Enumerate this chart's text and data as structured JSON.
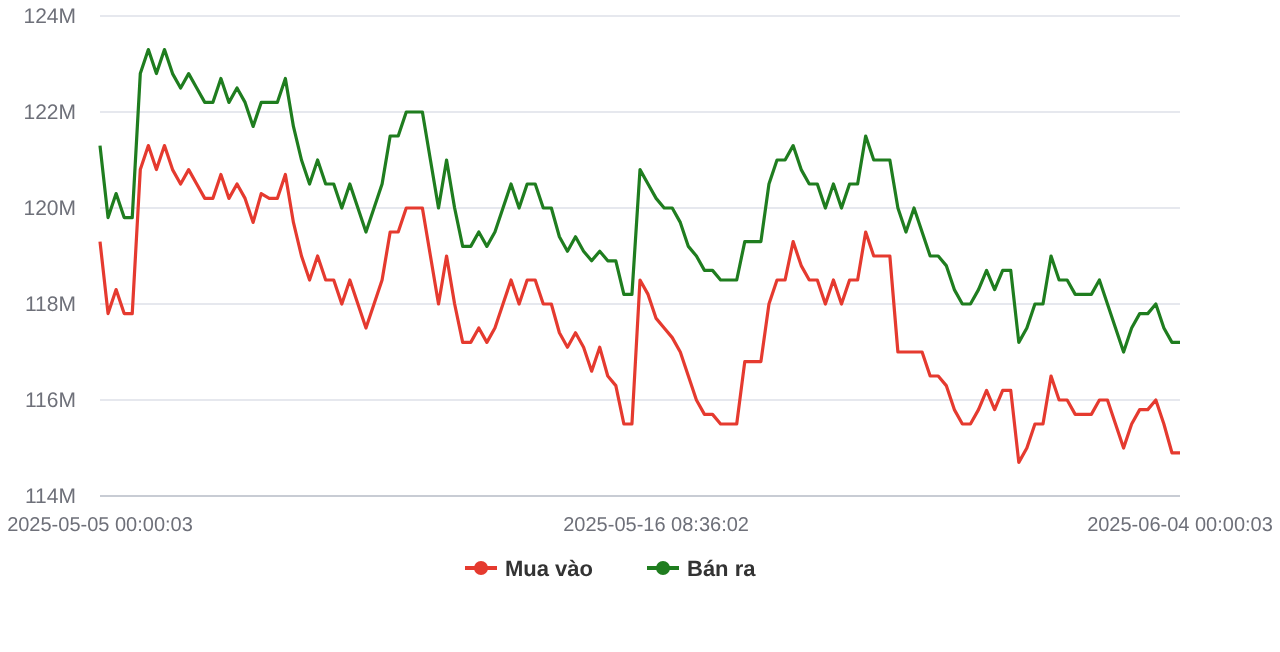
{
  "chart_data": {
    "type": "line",
    "categories": [
      "2025-05-05 00:00:03",
      null,
      null,
      null,
      null,
      null,
      null,
      null,
      null,
      null,
      null,
      null,
      null,
      null,
      null,
      null,
      null,
      null,
      null,
      null,
      null,
      null,
      null,
      null,
      null,
      null,
      null,
      null,
      null,
      null,
      null,
      null,
      null,
      null,
      null,
      null,
      null,
      null,
      null,
      null,
      null,
      null,
      null,
      null,
      null,
      null,
      null,
      null,
      null,
      null,
      null,
      null,
      null,
      null,
      null,
      null,
      null,
      null,
      null,
      null,
      null,
      null,
      null,
      null,
      null,
      null,
      null,
      null,
      null,
      "2025-05-16 08:36:02",
      null,
      null,
      null,
      null,
      null,
      null,
      null,
      null,
      null,
      null,
      null,
      null,
      null,
      null,
      null,
      null,
      null,
      null,
      null,
      null,
      null,
      null,
      null,
      null,
      null,
      null,
      null,
      null,
      null,
      null,
      null,
      null,
      null,
      null,
      null,
      null,
      null,
      null,
      null,
      null,
      null,
      null,
      null,
      null,
      null,
      null,
      null,
      null,
      null,
      null,
      null,
      null,
      null,
      null,
      null,
      null,
      null,
      null,
      null,
      null,
      null,
      null,
      null,
      null,
      "2025-06-04 00:00:03"
    ],
    "series": [
      {
        "name": "Mua vào",
        "color": "#e53a2f",
        "values": [
          119.3,
          117.8,
          118.3,
          117.8,
          117.8,
          120.8,
          121.3,
          120.8,
          121.3,
          120.8,
          120.5,
          120.8,
          120.5,
          120.2,
          120.2,
          120.7,
          120.2,
          120.5,
          120.2,
          119.7,
          120.3,
          120.2,
          120.2,
          120.7,
          119.7,
          119.0,
          118.5,
          119.0,
          118.5,
          118.5,
          118.0,
          118.5,
          118.0,
          117.5,
          118.0,
          118.5,
          119.5,
          119.5,
          120.0,
          120.0,
          120.0,
          119.0,
          118.0,
          119.0,
          118.0,
          117.2,
          117.2,
          117.5,
          117.2,
          117.5,
          118.0,
          118.5,
          118.0,
          118.5,
          118.5,
          118.0,
          118.0,
          117.4,
          117.1,
          117.4,
          117.1,
          116.6,
          117.1,
          116.5,
          116.3,
          115.5,
          115.5,
          118.5,
          118.2,
          117.7,
          117.5,
          117.3,
          117.0,
          116.5,
          116.0,
          115.7,
          115.7,
          115.5,
          115.5,
          115.5,
          116.8,
          116.8,
          116.8,
          118.0,
          118.5,
          118.5,
          119.3,
          118.8,
          118.5,
          118.5,
          118.0,
          118.5,
          118.0,
          118.5,
          118.5,
          119.5,
          119.0,
          119.0,
          119.0,
          117.0,
          117.0,
          117.0,
          117.0,
          116.5,
          116.5,
          116.3,
          115.8,
          115.5,
          115.5,
          115.8,
          116.2,
          115.8,
          116.2,
          116.2,
          114.7,
          115.0,
          115.5,
          115.5,
          116.5,
          116.0,
          116.0,
          115.7,
          115.7,
          115.7,
          116.0,
          116.0,
          115.5,
          115.0,
          115.5,
          115.8,
          115.8,
          116.0,
          115.5,
          114.9,
          114.9
        ]
      },
      {
        "name": "Bán ra",
        "color": "#1f7d1f",
        "values": [
          121.3,
          119.8,
          120.3,
          119.8,
          119.8,
          122.8,
          123.3,
          122.8,
          123.3,
          122.8,
          122.5,
          122.8,
          122.5,
          122.2,
          122.2,
          122.7,
          122.2,
          122.5,
          122.2,
          121.7,
          122.2,
          122.2,
          122.2,
          122.7,
          121.7,
          121.0,
          120.5,
          121.0,
          120.5,
          120.5,
          120.0,
          120.5,
          120.0,
          119.5,
          120.0,
          120.5,
          121.5,
          121.5,
          122.0,
          122.0,
          122.0,
          121.0,
          120.0,
          121.0,
          120.0,
          119.2,
          119.2,
          119.5,
          119.2,
          119.5,
          120.0,
          120.5,
          120.0,
          120.5,
          120.5,
          120.0,
          120.0,
          119.4,
          119.1,
          119.4,
          119.1,
          118.9,
          119.1,
          118.9,
          118.9,
          118.2,
          118.2,
          120.8,
          120.5,
          120.2,
          120.0,
          120.0,
          119.7,
          119.2,
          119.0,
          118.7,
          118.7,
          118.5,
          118.5,
          118.5,
          119.3,
          119.3,
          119.3,
          120.5,
          121.0,
          121.0,
          121.3,
          120.8,
          120.5,
          120.5,
          120.0,
          120.5,
          120.0,
          120.5,
          120.5,
          121.5,
          121.0,
          121.0,
          121.0,
          120.0,
          119.5,
          120.0,
          119.5,
          119.0,
          119.0,
          118.8,
          118.3,
          118.0,
          118.0,
          118.3,
          118.7,
          118.3,
          118.7,
          118.7,
          117.2,
          117.5,
          118.0,
          118.0,
          119.0,
          118.5,
          118.5,
          118.2,
          118.2,
          118.2,
          118.5,
          118.0,
          117.5,
          117.0,
          117.5,
          117.8,
          117.8,
          118.0,
          117.5,
          117.2,
          117.2
        ]
      }
    ],
    "ylim": [
      114,
      124
    ],
    "yticks": [
      {
        "value": 114,
        "label": "114M"
      },
      {
        "value": 116,
        "label": "116M"
      },
      {
        "value": 118,
        "label": "118M"
      },
      {
        "value": 120,
        "label": "120M"
      },
      {
        "value": 122,
        "label": "122M"
      },
      {
        "value": 124,
        "label": "124M"
      }
    ],
    "grid": "y",
    "legend": "bottom",
    "marker": "none",
    "line_style": "solid"
  }
}
